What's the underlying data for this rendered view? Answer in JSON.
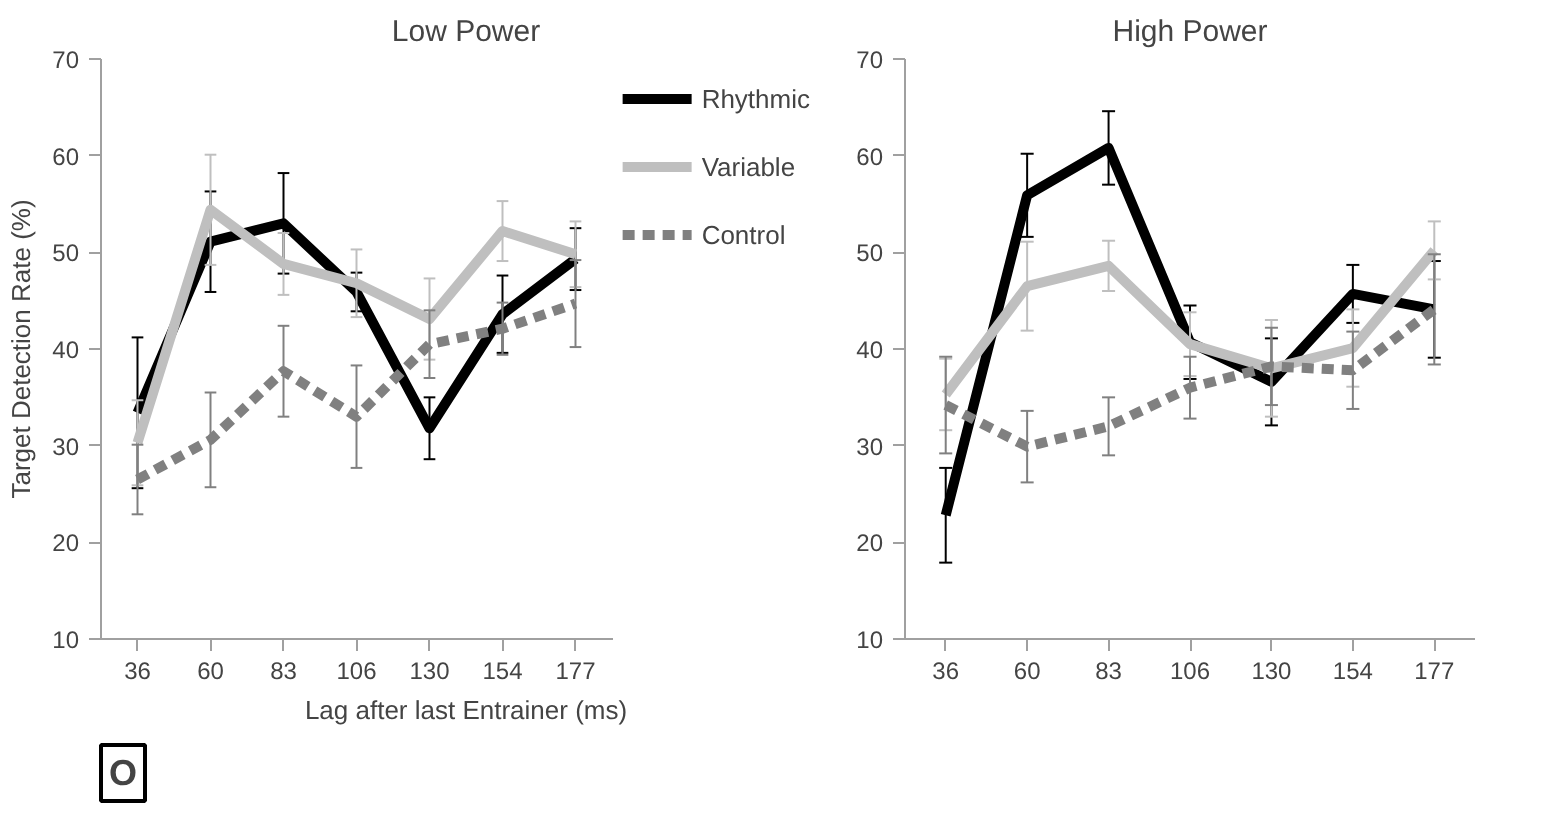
{
  "chart_data": [
    {
      "type": "line",
      "title": "Low Power",
      "xlabel": "Lag after last Entrainer (ms)",
      "ylabel": "Target Detection Rate (%)",
      "categories": [
        "36",
        "60",
        "83",
        "106",
        "130",
        "154",
        "177"
      ],
      "ylim": [
        10,
        70
      ],
      "yticks": [
        10,
        20,
        30,
        40,
        50,
        60,
        70
      ],
      "grid": false,
      "legend": "right",
      "marker": "none",
      "annotations": [
        "O"
      ],
      "series": [
        {
          "name": "Rhythmic",
          "color": "#000000",
          "line_style": "solid",
          "values": [
            33.4,
            51.1,
            53.0,
            45.9,
            31.8,
            43.6,
            49.3
          ],
          "errors": [
            7.8,
            5.2,
            5.2,
            2,
            3.2,
            4,
            3.2
          ]
        },
        {
          "name": "Variable",
          "color": "#bfbfbf",
          "line_style": "solid",
          "values": [
            30.3,
            54.4,
            48.8,
            46.8,
            43.1,
            52.2,
            49.8
          ],
          "errors": [
            4.4,
            5.7,
            3.2,
            3.5,
            4.2,
            3.1,
            3.4
          ]
        },
        {
          "name": "Control",
          "color": "#808080",
          "line_style": "dashed",
          "values": [
            26.5,
            30.6,
            37.7,
            33.0,
            40.5,
            42.1,
            44.7
          ],
          "errors": [
            3.6,
            4.9,
            4.7,
            5.3,
            3.5,
            2.7,
            4.5
          ]
        }
      ]
    },
    {
      "type": "line",
      "title": "High Power",
      "categories": [
        "36",
        "60",
        "83",
        "106",
        "130",
        "154",
        "177"
      ],
      "ylim": [
        10,
        70
      ],
      "yticks": [
        10,
        20,
        30,
        40,
        50,
        60,
        70
      ],
      "grid": false,
      "marker": "none",
      "series": [
        {
          "color": "#000000",
          "line_style": "solid",
          "values": [
            22.8,
            55.9,
            60.8,
            40.7,
            36.6,
            45.7,
            44.1
          ],
          "errors": [
            4.9,
            4.3,
            3.8,
            3.8,
            4.5,
            3,
            5
          ]
        },
        {
          "color": "#bfbfbf",
          "line_style": "solid",
          "values": [
            35.3,
            46.5,
            48.6,
            40.5,
            38.0,
            40.1,
            50.2
          ],
          "errors": [
            3.7,
            4.6,
            2.6,
            3.3,
            5,
            4,
            3
          ]
        },
        {
          "color": "#808080",
          "line_style": "dashed",
          "values": [
            34.2,
            29.9,
            32.0,
            36.0,
            38.2,
            37.8,
            44.1
          ],
          "errors": [
            5,
            3.7,
            3,
            3.2,
            4,
            4,
            5.7
          ]
        }
      ]
    }
  ]
}
